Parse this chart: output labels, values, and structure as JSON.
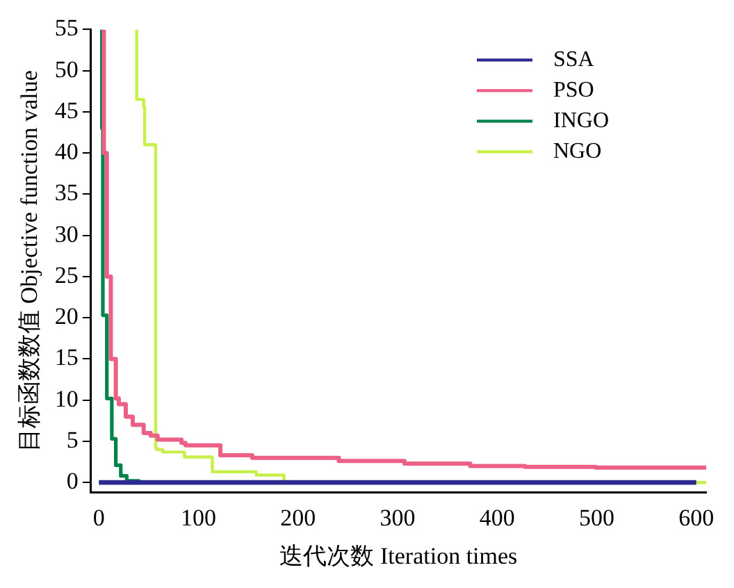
{
  "chart_data": {
    "type": "step",
    "xlabel": "迭代次数 Iteration times",
    "ylabel": "目标函数数值 Objective function value",
    "xlim": [
      -8,
      610
    ],
    "ylim": [
      -1.2,
      55
    ],
    "xticks": [
      0,
      100,
      200,
      300,
      400,
      500,
      600
    ],
    "yticks": [
      0,
      5,
      10,
      15,
      20,
      25,
      30,
      35,
      40,
      45,
      50,
      55
    ],
    "legend": "top right",
    "series": [
      {
        "name": "SSA",
        "color": "#2b2b8f",
        "x": [
          0,
          600
        ],
        "values": [
          0,
          0
        ]
      },
      {
        "name": "PSO",
        "color": "#ec5f86",
        "x": [
          5,
          8,
          12,
          17,
          20,
          27,
          34,
          45,
          52,
          59,
          83,
          87,
          122,
          154,
          241,
          307,
          373,
          428,
          499,
          599,
          610
        ],
        "values": [
          55,
          40,
          25,
          15,
          10.2,
          9.5,
          8,
          7,
          6,
          5.7,
          5.2,
          4.8,
          4.5,
          3.3,
          3.0,
          2.6,
          2.3,
          2.0,
          1.9,
          1.8,
          1.8
        ]
      },
      {
        "name": "INGO",
        "color": "#00844a",
        "x": [
          3,
          4,
          8,
          13,
          17,
          22,
          28,
          40,
          186,
          262
        ],
        "values": [
          55,
          43,
          20.3,
          10.2,
          5.3,
          2.1,
          0.8,
          0.2,
          0,
          0
        ]
      },
      {
        "name": "NGO",
        "color": "#c8f04a",
        "x": [
          38,
          45,
          46,
          57,
          58,
          64,
          86,
          114,
          158,
          186,
          610
        ],
        "values": [
          55,
          46.5,
          45.6,
          41,
          4.2,
          4,
          3.7,
          3.1,
          1.3,
          0.9,
          0
        ]
      }
    ]
  }
}
